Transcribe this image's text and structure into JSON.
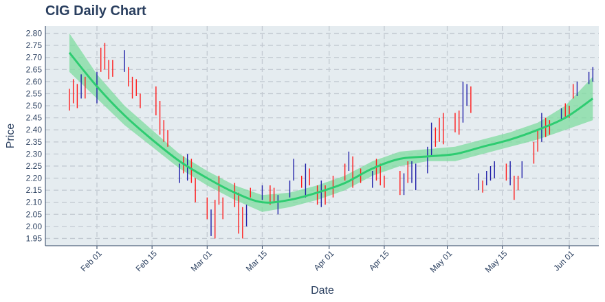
{
  "chart_data": {
    "type": "candlestick",
    "title": "CIG Daily Chart",
    "xlabel": "Date",
    "ylabel": "Price",
    "x_ticks": [
      "Feb 01",
      "Feb 15",
      "Mar 01",
      "Mar 15",
      "Apr 01",
      "Apr 15",
      "May 01",
      "May 15",
      "Jun 01"
    ],
    "y_ticks": [
      "1.95",
      "2.00",
      "2.05",
      "2.10",
      "2.15",
      "2.20",
      "2.25",
      "2.30",
      "2.35",
      "2.40",
      "2.45",
      "2.50",
      "2.55",
      "2.60",
      "2.65",
      "2.70",
      "2.75",
      "2.80"
    ],
    "xlim": [
      "2021-01-22",
      "2021-06-03"
    ],
    "ylim": [
      1.92,
      2.83
    ],
    "grid": true,
    "colors": {
      "up": "#1f1fa8",
      "down": "#ff1a1a",
      "trend": "#2ecc71",
      "band": "#7fdca0",
      "plot_bg": "#e5ecf0",
      "grid": "#c2c9d1"
    },
    "candles": [
      {
        "date": "2021-01-25",
        "low": 2.48,
        "high": 2.57,
        "dir": "down"
      },
      {
        "date": "2021-01-26",
        "low": 2.51,
        "high": 2.61,
        "dir": "down"
      },
      {
        "date": "2021-01-27",
        "low": 2.49,
        "high": 2.59,
        "dir": "down"
      },
      {
        "date": "2021-01-28",
        "low": 2.53,
        "high": 2.63,
        "dir": "up"
      },
      {
        "date": "2021-01-29",
        "low": 2.53,
        "high": 2.62,
        "dir": "down"
      },
      {
        "date": "2021-02-01",
        "low": 2.51,
        "high": 2.64,
        "dir": "up"
      },
      {
        "date": "2021-02-02",
        "low": 2.64,
        "high": 2.74,
        "dir": "down"
      },
      {
        "date": "2021-02-03",
        "low": 2.65,
        "high": 2.76,
        "dir": "down"
      },
      {
        "date": "2021-02-04",
        "low": 2.61,
        "high": 2.69,
        "dir": "down"
      },
      {
        "date": "2021-02-05",
        "low": 2.62,
        "high": 2.69,
        "dir": "down"
      },
      {
        "date": "2021-02-08",
        "low": 2.64,
        "high": 2.73,
        "dir": "up"
      },
      {
        "date": "2021-02-09",
        "low": 2.58,
        "high": 2.66,
        "dir": "down"
      },
      {
        "date": "2021-02-10",
        "low": 2.53,
        "high": 2.62,
        "dir": "down"
      },
      {
        "date": "2021-02-11",
        "low": 2.54,
        "high": 2.61,
        "dir": "down"
      },
      {
        "date": "2021-02-12",
        "low": 2.49,
        "high": 2.55,
        "dir": "down"
      },
      {
        "date": "2021-02-16",
        "low": 2.46,
        "high": 2.58,
        "dir": "down"
      },
      {
        "date": "2021-02-17",
        "low": 2.38,
        "high": 2.52,
        "dir": "down"
      },
      {
        "date": "2021-02-18",
        "low": 2.35,
        "high": 2.44,
        "dir": "down"
      },
      {
        "date": "2021-02-19",
        "low": 2.33,
        "high": 2.4,
        "dir": "down"
      },
      {
        "date": "2021-02-22",
        "low": 2.18,
        "high": 2.26,
        "dir": "up"
      },
      {
        "date": "2021-02-23",
        "low": 2.22,
        "high": 2.29,
        "dir": "down"
      },
      {
        "date": "2021-02-24",
        "low": 2.19,
        "high": 2.3,
        "dir": "up"
      },
      {
        "date": "2021-02-25",
        "low": 2.18,
        "high": 2.28,
        "dir": "down"
      },
      {
        "date": "2021-02-26",
        "low": 2.1,
        "high": 2.2,
        "dir": "down"
      },
      {
        "date": "2021-03-01",
        "low": 2.03,
        "high": 2.12,
        "dir": "down"
      },
      {
        "date": "2021-03-02",
        "low": 1.96,
        "high": 2.07,
        "dir": "up"
      },
      {
        "date": "2021-03-03",
        "low": 1.95,
        "high": 2.11,
        "dir": "down"
      },
      {
        "date": "2021-03-04",
        "low": 2.09,
        "high": 2.21,
        "dir": "down"
      },
      {
        "date": "2021-03-05",
        "low": 2.03,
        "high": 2.12,
        "dir": "down"
      },
      {
        "date": "2021-03-08",
        "low": 2.08,
        "high": 2.18,
        "dir": "down"
      },
      {
        "date": "2021-03-09",
        "low": 1.97,
        "high": 2.14,
        "dir": "down"
      },
      {
        "date": "2021-03-10",
        "low": 1.95,
        "high": 2.08,
        "dir": "down"
      },
      {
        "date": "2021-03-11",
        "low": 2.0,
        "high": 2.09,
        "dir": "up"
      },
      {
        "date": "2021-03-12",
        "low": 2.12,
        "high": 2.16,
        "dir": "down"
      },
      {
        "date": "2021-03-15",
        "low": 2.11,
        "high": 2.17,
        "dir": "up"
      },
      {
        "date": "2021-03-17",
        "low": 2.09,
        "high": 2.17,
        "dir": "down"
      },
      {
        "date": "2021-03-18",
        "low": 2.1,
        "high": 2.16,
        "dir": "down"
      },
      {
        "date": "2021-03-19",
        "low": 2.05,
        "high": 2.13,
        "dir": "up"
      },
      {
        "date": "2021-03-22",
        "low": 2.12,
        "high": 2.19,
        "dir": "up"
      },
      {
        "date": "2021-03-23",
        "low": 2.19,
        "high": 2.28,
        "dir": "up"
      },
      {
        "date": "2021-03-25",
        "low": 2.16,
        "high": 2.21,
        "dir": "down"
      },
      {
        "date": "2021-03-26",
        "low": 2.12,
        "high": 2.26,
        "dir": "up"
      },
      {
        "date": "2021-03-27",
        "low": 2.17,
        "high": 2.24,
        "dir": "down"
      },
      {
        "date": "2021-03-29",
        "low": 2.09,
        "high": 2.17,
        "dir": "down"
      },
      {
        "date": "2021-03-30",
        "low": 2.08,
        "high": 2.19,
        "dir": "up"
      },
      {
        "date": "2021-03-31",
        "low": 2.09,
        "high": 2.17,
        "dir": "down"
      },
      {
        "date": "2021-04-02",
        "low": 2.12,
        "high": 2.21,
        "dir": "down"
      },
      {
        "date": "2021-04-05",
        "low": 2.19,
        "high": 2.26,
        "dir": "down"
      },
      {
        "date": "2021-04-06",
        "low": 2.23,
        "high": 2.31,
        "dir": "up"
      },
      {
        "date": "2021-04-07",
        "low": 2.16,
        "high": 2.29,
        "dir": "down"
      },
      {
        "date": "2021-04-09",
        "low": 2.18,
        "high": 2.24,
        "dir": "down"
      },
      {
        "date": "2021-04-12",
        "low": 2.16,
        "high": 2.23,
        "dir": "up"
      },
      {
        "date": "2021-04-13",
        "low": 2.19,
        "high": 2.28,
        "dir": "down"
      },
      {
        "date": "2021-04-14",
        "low": 2.17,
        "high": 2.26,
        "dir": "down"
      },
      {
        "date": "2021-04-15",
        "low": 2.16,
        "high": 2.21,
        "dir": "down"
      },
      {
        "date": "2021-04-19",
        "low": 2.13,
        "high": 2.23,
        "dir": "down"
      },
      {
        "date": "2021-04-20",
        "low": 2.13,
        "high": 2.22,
        "dir": "up"
      },
      {
        "date": "2021-04-21",
        "low": 2.18,
        "high": 2.27,
        "dir": "down"
      },
      {
        "date": "2021-04-22",
        "low": 2.18,
        "high": 2.27,
        "dir": "up"
      },
      {
        "date": "2021-04-23",
        "low": 2.15,
        "high": 2.26,
        "dir": "up"
      },
      {
        "date": "2021-04-26",
        "low": 2.22,
        "high": 2.33,
        "dir": "up"
      },
      {
        "date": "2021-04-27",
        "low": 2.29,
        "high": 2.43,
        "dir": "up"
      },
      {
        "date": "2021-04-28",
        "low": 2.33,
        "high": 2.41,
        "dir": "down"
      },
      {
        "date": "2021-04-29",
        "low": 2.35,
        "high": 2.45,
        "dir": "down"
      },
      {
        "date": "2021-04-30",
        "low": 2.34,
        "high": 2.47,
        "dir": "down"
      },
      {
        "date": "2021-05-03",
        "low": 2.39,
        "high": 2.47,
        "dir": "down"
      },
      {
        "date": "2021-05-04",
        "low": 2.38,
        "high": 2.48,
        "dir": "down"
      },
      {
        "date": "2021-05-05",
        "low": 2.43,
        "high": 2.6,
        "dir": "up"
      },
      {
        "date": "2021-05-06",
        "low": 2.5,
        "high": 2.59,
        "dir": "up"
      },
      {
        "date": "2021-05-07",
        "low": 2.47,
        "high": 2.58,
        "dir": "down"
      },
      {
        "date": "2021-05-09",
        "low": 2.15,
        "high": 2.22,
        "dir": "up"
      },
      {
        "date": "2021-05-10",
        "low": 2.14,
        "high": 2.19,
        "dir": "down"
      },
      {
        "date": "2021-05-11",
        "low": 2.17,
        "high": 2.23,
        "dir": "up"
      },
      {
        "date": "2021-05-12",
        "low": 2.19,
        "high": 2.25,
        "dir": "up"
      },
      {
        "date": "2021-05-13",
        "low": 2.2,
        "high": 2.27,
        "dir": "up"
      },
      {
        "date": "2021-05-16",
        "low": 2.19,
        "high": 2.26,
        "dir": "down"
      },
      {
        "date": "2021-05-17",
        "low": 2.17,
        "high": 2.27,
        "dir": "up"
      },
      {
        "date": "2021-05-18",
        "low": 2.11,
        "high": 2.21,
        "dir": "down"
      },
      {
        "date": "2021-05-19",
        "low": 2.15,
        "high": 2.21,
        "dir": "down"
      },
      {
        "date": "2021-05-20",
        "low": 2.2,
        "high": 2.27,
        "dir": "up"
      },
      {
        "date": "2021-05-23",
        "low": 2.26,
        "high": 2.35,
        "dir": "down"
      },
      {
        "date": "2021-05-24",
        "low": 2.31,
        "high": 2.4,
        "dir": "down"
      },
      {
        "date": "2021-05-25",
        "low": 2.35,
        "high": 2.47,
        "dir": "up"
      },
      {
        "date": "2021-05-26",
        "low": 2.37,
        "high": 2.45,
        "dir": "down"
      },
      {
        "date": "2021-05-27",
        "low": 2.38,
        "high": 2.44,
        "dir": "down"
      },
      {
        "date": "2021-05-30",
        "low": 2.44,
        "high": 2.49,
        "dir": "up"
      },
      {
        "date": "2021-05-31",
        "low": 2.45,
        "high": 2.51,
        "dir": "down"
      },
      {
        "date": "2021-06-01",
        "low": 2.45,
        "high": 2.5,
        "dir": "down"
      },
      {
        "date": "2021-06-02",
        "low": 2.53,
        "high": 2.59,
        "dir": "down"
      },
      {
        "date": "2021-06-03",
        "low": 2.54,
        "high": 2.6,
        "dir": "up"
      },
      {
        "date": "2021-06-06",
        "low": 2.59,
        "high": 2.64,
        "dir": "up"
      },
      {
        "date": "2021-06-07",
        "low": 2.6,
        "high": 2.66,
        "dir": "up"
      }
    ],
    "trend": [
      {
        "date": "2021-01-25",
        "value": 2.72,
        "lower": 2.64,
        "upper": 2.8
      },
      {
        "date": "2021-02-01",
        "value": 2.58,
        "lower": 2.53,
        "upper": 2.63
      },
      {
        "date": "2021-02-08",
        "value": 2.46,
        "lower": 2.42,
        "upper": 2.5
      },
      {
        "date": "2021-02-15",
        "value": 2.36,
        "lower": 2.33,
        "upper": 2.4
      },
      {
        "date": "2021-02-22",
        "value": 2.27,
        "lower": 2.24,
        "upper": 2.3
      },
      {
        "date": "2021-03-01",
        "value": 2.2,
        "lower": 2.17,
        "upper": 2.23
      },
      {
        "date": "2021-03-08",
        "value": 2.14,
        "lower": 2.11,
        "upper": 2.17
      },
      {
        "date": "2021-03-15",
        "value": 2.1,
        "lower": 2.06,
        "upper": 2.13
      },
      {
        "date": "2021-03-22",
        "value": 2.11,
        "lower": 2.08,
        "upper": 2.14
      },
      {
        "date": "2021-03-29",
        "value": 2.14,
        "lower": 2.11,
        "upper": 2.17
      },
      {
        "date": "2021-04-05",
        "value": 2.18,
        "lower": 2.15,
        "upper": 2.21
      },
      {
        "date": "2021-04-12",
        "value": 2.24,
        "lower": 2.21,
        "upper": 2.27
      },
      {
        "date": "2021-04-19",
        "value": 2.28,
        "lower": 2.25,
        "upper": 2.31
      },
      {
        "date": "2021-04-26",
        "value": 2.29,
        "lower": 2.27,
        "upper": 2.32
      },
      {
        "date": "2021-05-03",
        "value": 2.3,
        "lower": 2.27,
        "upper": 2.33
      },
      {
        "date": "2021-05-10",
        "value": 2.33,
        "lower": 2.3,
        "upper": 2.36
      },
      {
        "date": "2021-05-17",
        "value": 2.36,
        "lower": 2.33,
        "upper": 2.39
      },
      {
        "date": "2021-05-24",
        "value": 2.4,
        "lower": 2.36,
        "upper": 2.43
      },
      {
        "date": "2021-05-31",
        "value": 2.45,
        "lower": 2.4,
        "upper": 2.5
      },
      {
        "date": "2021-06-07",
        "value": 2.53,
        "lower": 2.44,
        "upper": 2.62
      }
    ]
  }
}
